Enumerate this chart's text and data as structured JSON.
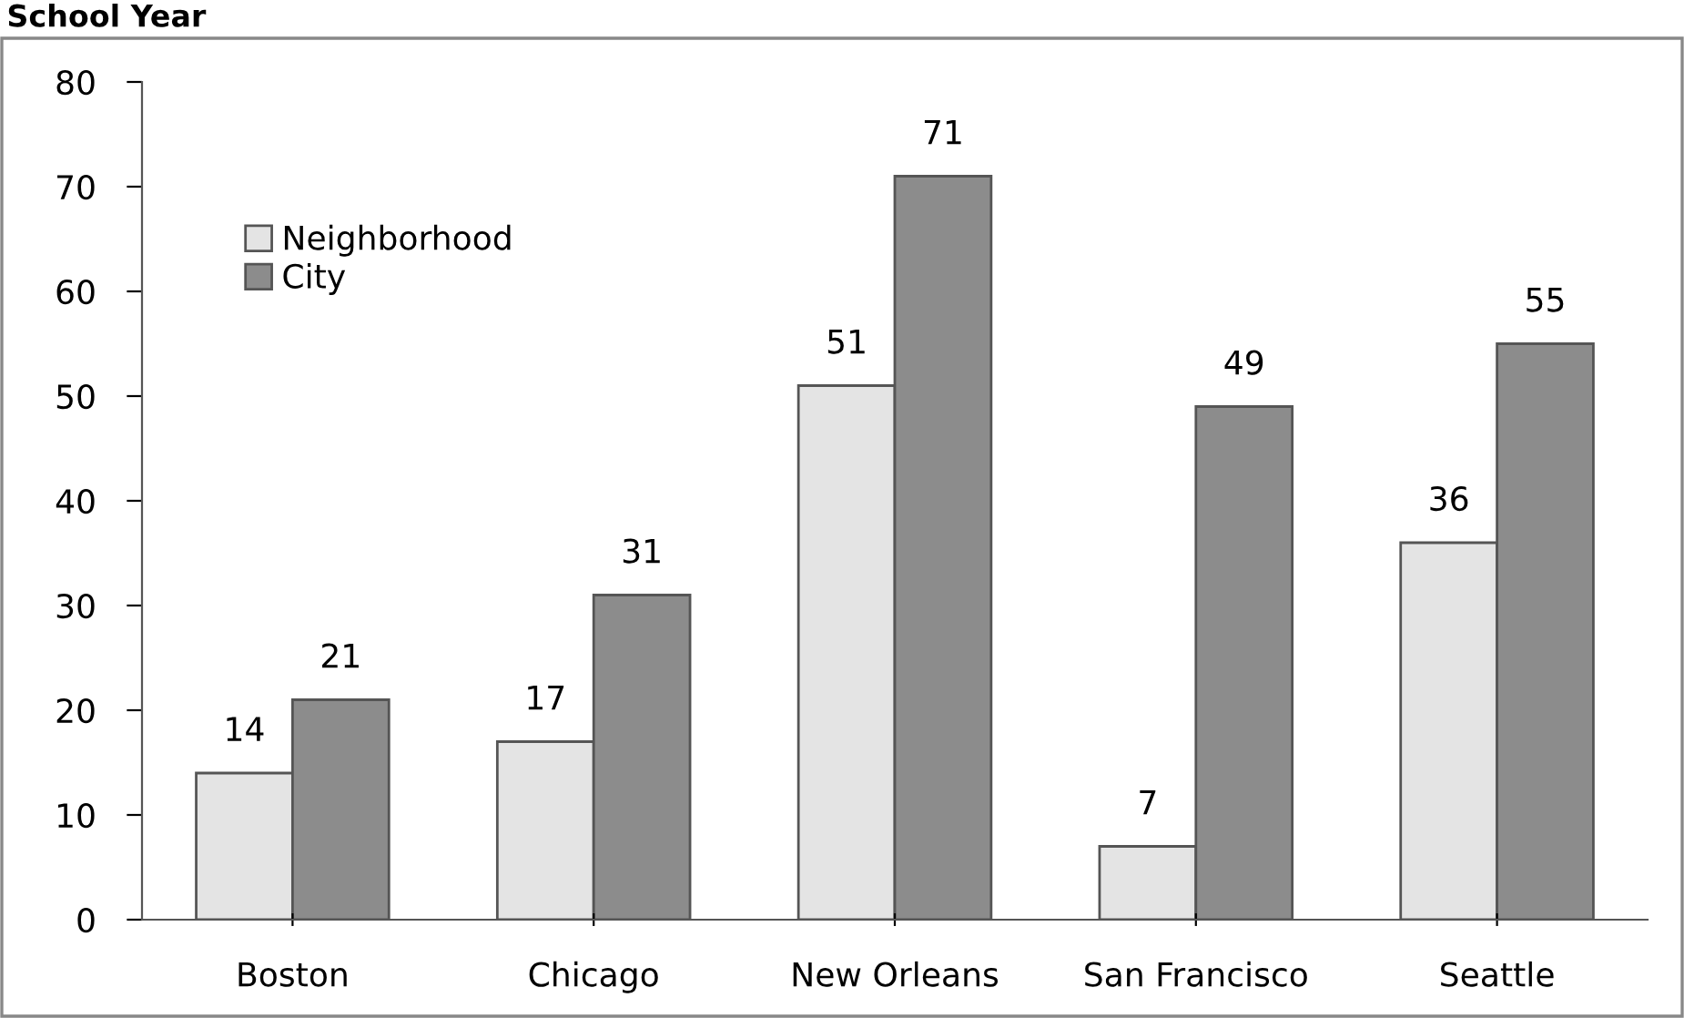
{
  "chart_data": {
    "type": "bar",
    "title": "School Year",
    "categories": [
      "Boston",
      "Chicago",
      "New Orleans",
      "San Francisco",
      "Seattle"
    ],
    "series": [
      {
        "name": "Neighborhood",
        "color": "#e4e4e4",
        "values": [
          14,
          17,
          51,
          7,
          36
        ]
      },
      {
        "name": "City",
        "color": "#8c8c8c",
        "values": [
          21,
          31,
          71,
          49,
          55
        ]
      }
    ],
    "ylim": [
      0,
      80
    ],
    "yticks": [
      0,
      10,
      20,
      30,
      40,
      50,
      60,
      70,
      80
    ],
    "data_labels": true,
    "grid": false,
    "legend": "top left"
  }
}
